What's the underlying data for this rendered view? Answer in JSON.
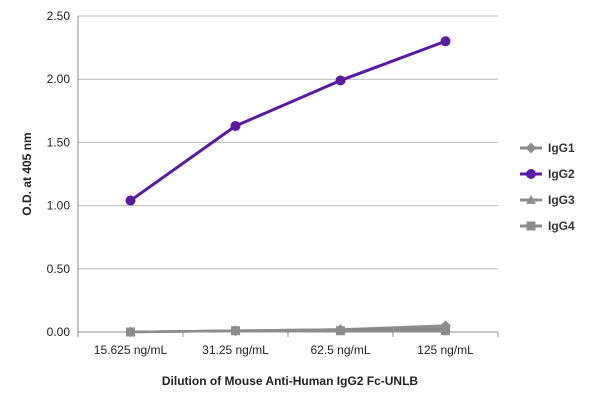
{
  "chart_data": {
    "type": "line",
    "title": "",
    "xlabel": "Dilution of Mouse Anti-Human IgG2 Fc-UNLB",
    "ylabel": "O.D. at 405 nm",
    "categories": [
      "15.625 ng/mL",
      "31.25 ng/mL",
      "62.5 ng/mL",
      "125 ng/mL"
    ],
    "ylim": [
      0,
      2.5
    ],
    "yticks": [
      "0.00",
      "0.50",
      "1.00",
      "1.50",
      "2.00",
      "2.50"
    ],
    "ytick_values": [
      0,
      0.5,
      1.0,
      1.5,
      2.0,
      2.5
    ],
    "grid": "horizontal",
    "legend_position": "right",
    "series": [
      {
        "name": "IgG1",
        "values": [
          0.0,
          0.01,
          0.02,
          0.05
        ],
        "color": "#8c8c8c",
        "marker": "diamond"
      },
      {
        "name": "IgG2",
        "values": [
          1.04,
          1.63,
          1.99,
          2.3
        ],
        "color": "#5b1aa6",
        "marker": "circle"
      },
      {
        "name": "IgG3",
        "values": [
          0.0,
          0.01,
          0.02,
          0.03
        ],
        "color": "#8c8c8c",
        "marker": "triangle"
      },
      {
        "name": "IgG4",
        "values": [
          0.0,
          0.01,
          0.01,
          0.01
        ],
        "color": "#8c8c8c",
        "marker": "square"
      }
    ]
  }
}
